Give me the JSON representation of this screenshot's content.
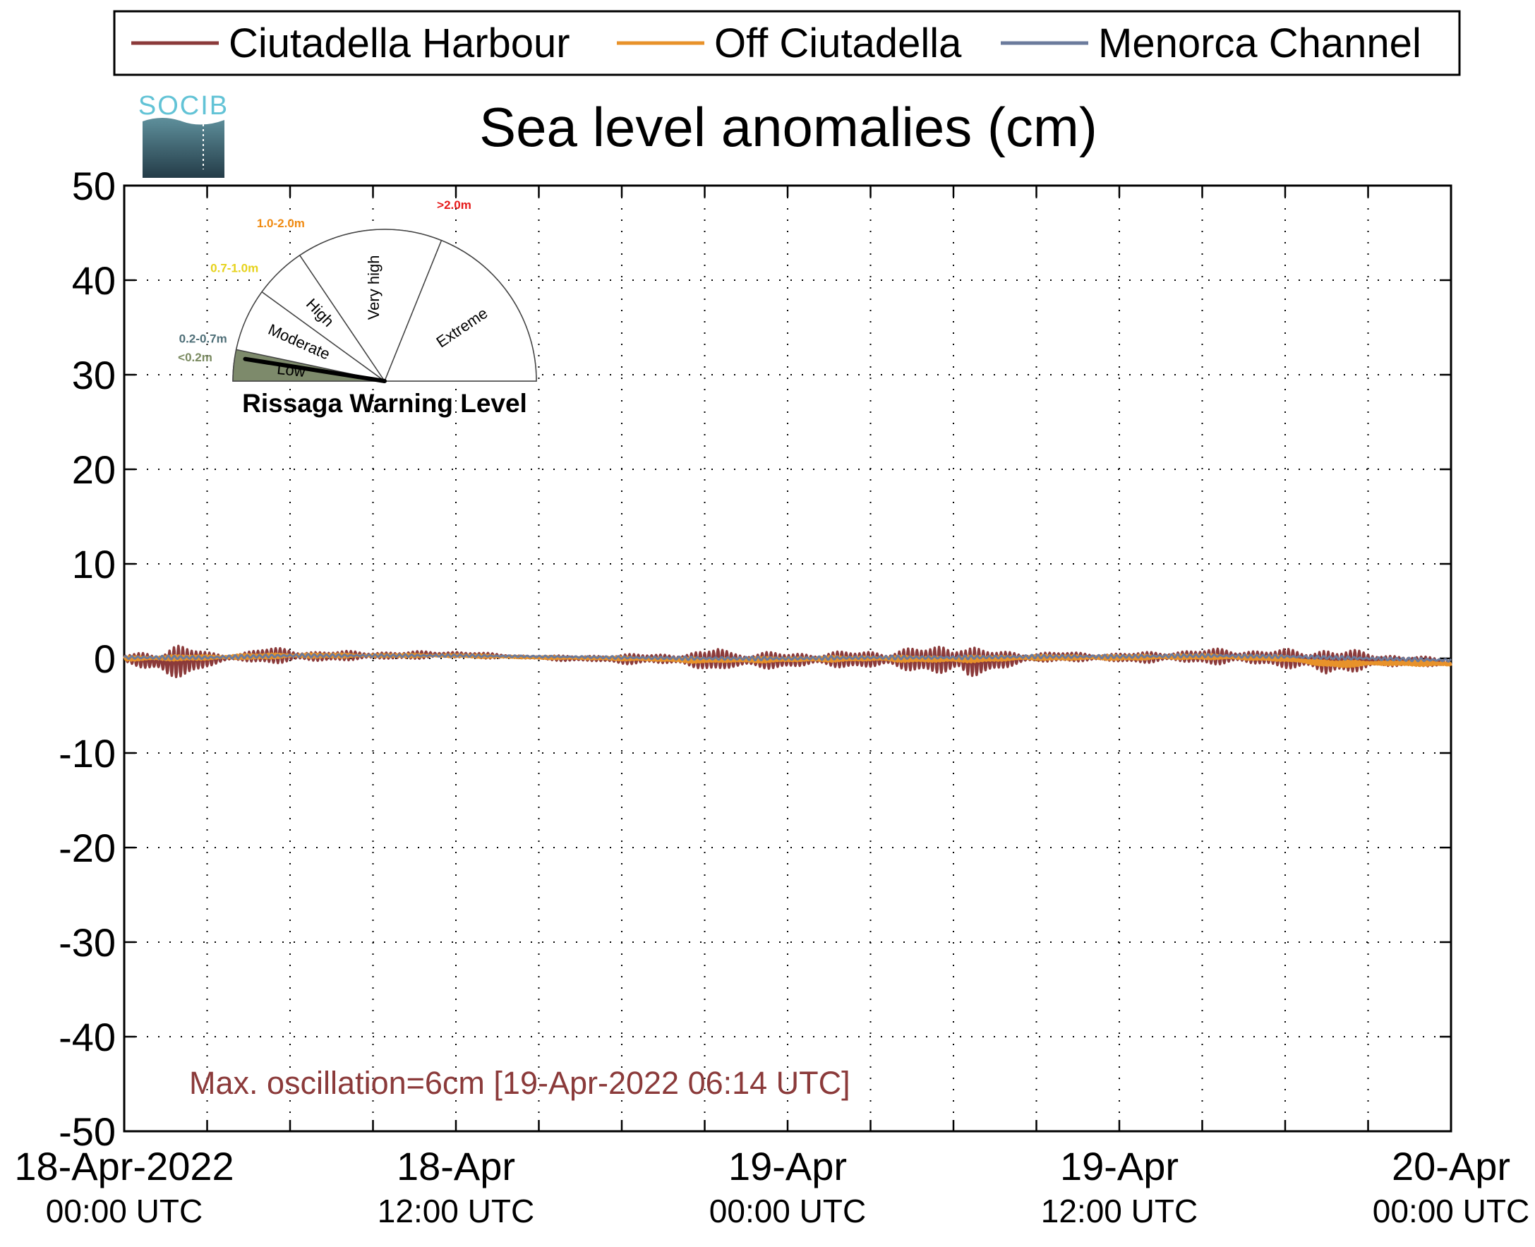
{
  "legend": {
    "items": [
      {
        "label": "Ciutadella Harbour",
        "color": "#8b3a3a"
      },
      {
        "label": "Off Ciutadella",
        "color": "#e8922a"
      },
      {
        "label": "Menorca Channel",
        "color": "#6b7b9c"
      }
    ]
  },
  "logo": {
    "text": "SOCIB"
  },
  "gauge": {
    "title": "Rissaga Warning Level",
    "levels": [
      {
        "name": "Low",
        "range": "<0.2m",
        "range_color": "#7a8a60",
        "fill": "#7d8a6b"
      },
      {
        "name": "Moderate",
        "range": "0.2-0.7m",
        "range_color": "#4f6f78",
        "fill": "#ffffff"
      },
      {
        "name": "High",
        "range": "0.7-1.0m",
        "range_color": "#e6d21a",
        "fill": "#ffffff"
      },
      {
        "name": "Very high",
        "range": "1.0-2.0m",
        "range_color": "#f08a10",
        "fill": "#ffffff"
      },
      {
        "name": "Extreme",
        "range": ">2.0m",
        "range_color": "#e61a1a",
        "fill": "#ffffff"
      }
    ],
    "current_level": "Low",
    "needle_fraction": 0.05
  },
  "annotation": {
    "text": "Max. oscillation=6cm [19-Apr-2022 06:14 UTC]",
    "color": "#8b3a3a"
  },
  "chart_data": {
    "type": "line",
    "title": "Sea level anomalies (cm)",
    "xlabel": "",
    "ylabel": "",
    "ylim": [
      -50,
      50
    ],
    "yticks": [
      50,
      40,
      30,
      20,
      10,
      0,
      -10,
      -20,
      -30,
      -40,
      -50
    ],
    "xlim_hours": [
      0,
      48
    ],
    "xticks_hours": [
      0,
      3,
      6,
      9,
      12,
      15,
      18,
      21,
      24,
      27,
      30,
      33,
      36,
      39,
      42,
      45,
      48
    ],
    "xtick_labels": [
      {
        "hour": 0,
        "line1": "18-Apr-2022",
        "line2": "00:00 UTC"
      },
      {
        "hour": 12,
        "line1": "18-Apr",
        "line2": "12:00 UTC"
      },
      {
        "hour": 24,
        "line1": "19-Apr",
        "line2": "00:00 UTC"
      },
      {
        "hour": 36,
        "line1": "19-Apr",
        "line2": "12:00 UTC"
      },
      {
        "hour": 48,
        "line1": "20-Apr",
        "line2": "00:00 UTC"
      }
    ],
    "grid": true,
    "legend_position": "top",
    "series": [
      {
        "name": "Ciutadella Harbour",
        "color": "#8b3a3a",
        "hours": [
          0,
          1,
          1.5,
          2,
          2.5,
          3,
          4,
          5,
          6,
          7,
          8,
          9,
          10,
          11,
          12,
          13,
          14,
          15,
          16,
          17,
          18,
          19,
          20,
          21,
          21.5,
          22,
          23,
          24,
          25,
          26,
          27,
          28,
          29,
          30,
          30.2,
          30.5,
          31,
          32,
          33,
          34,
          35,
          36,
          37,
          38,
          39,
          40,
          41,
          42,
          43,
          43.5,
          44,
          45,
          46,
          47,
          48
        ],
        "envelope_cm": [
          0.4,
          1.2,
          2.2,
          2.0,
          1.5,
          0.8,
          0.4,
          0.9,
          0.8,
          0.6,
          0.5,
          0.5,
          0.4,
          0.4,
          0.4,
          0.3,
          0.2,
          0.2,
          0.3,
          0.4,
          0.5,
          0.6,
          0.7,
          0.9,
          1.8,
          1.0,
          0.9,
          0.9,
          0.8,
          0.9,
          1.0,
          1.2,
          1.4,
          2.0,
          2.6,
          2.2,
          1.4,
          0.9,
          0.6,
          0.5,
          0.5,
          0.5,
          0.6,
          0.7,
          0.8,
          0.9,
          0.9,
          1.0,
          1.3,
          1.8,
          1.4,
          0.9,
          0.8,
          0.5,
          0.4
        ],
        "mean_cm": [
          0.0,
          -0.3,
          -0.5,
          -0.3,
          -0.2,
          -0.1,
          0.1,
          0.3,
          0.3,
          0.2,
          0.3,
          0.3,
          0.3,
          0.4,
          0.4,
          0.3,
          0.2,
          0.1,
          0.0,
          0.0,
          -0.1,
          0.0,
          -0.1,
          -0.2,
          0.0,
          -0.2,
          -0.2,
          -0.2,
          -0.1,
          -0.1,
          -0.1,
          -0.1,
          -0.1,
          -0.2,
          0.0,
          -0.4,
          -0.3,
          -0.1,
          0.1,
          0.2,
          0.1,
          0.1,
          0.1,
          0.2,
          0.2,
          0.2,
          0.1,
          0.0,
          -0.2,
          -0.4,
          -0.3,
          -0.2,
          -0.3,
          -0.3,
          -0.5
        ]
      },
      {
        "name": "Off Ciutadella",
        "color": "#e8922a",
        "hours": [
          0,
          3,
          6,
          9,
          12,
          15,
          18,
          21,
          24,
          27,
          30,
          33,
          36,
          39,
          42,
          43,
          44,
          45,
          46,
          47,
          48
        ],
        "envelope_cm": [
          0.3,
          0.3,
          0.3,
          0.2,
          0.2,
          0.15,
          0.2,
          0.3,
          0.3,
          0.3,
          0.4,
          0.3,
          0.3,
          0.3,
          0.3,
          0.4,
          0.4,
          0.3,
          0.3,
          0.3,
          0.3
        ],
        "mean_cm": [
          0.0,
          0.1,
          0.3,
          0.3,
          0.3,
          0.1,
          0.0,
          -0.2,
          -0.1,
          0.0,
          -0.1,
          0.1,
          0.1,
          0.2,
          0.0,
          -0.4,
          -0.6,
          -0.5,
          -0.5,
          -0.5,
          -0.6
        ]
      },
      {
        "name": "Menorca Channel",
        "color": "#6b7b9c",
        "hours": [
          0,
          3,
          6,
          9,
          12,
          15,
          18,
          21,
          24,
          27,
          30,
          33,
          36,
          39,
          42,
          45,
          48
        ],
        "envelope_cm": [
          0.2,
          0.2,
          0.2,
          0.15,
          0.15,
          0.1,
          0.15,
          0.2,
          0.2,
          0.2,
          0.2,
          0.2,
          0.2,
          0.2,
          0.2,
          0.2,
          0.2
        ],
        "mean_cm": [
          0.1,
          0.1,
          0.3,
          0.3,
          0.3,
          0.2,
          0.1,
          0.0,
          0.0,
          0.1,
          0.1,
          0.2,
          0.2,
          0.3,
          0.2,
          0.0,
          -0.2
        ]
      }
    ]
  }
}
